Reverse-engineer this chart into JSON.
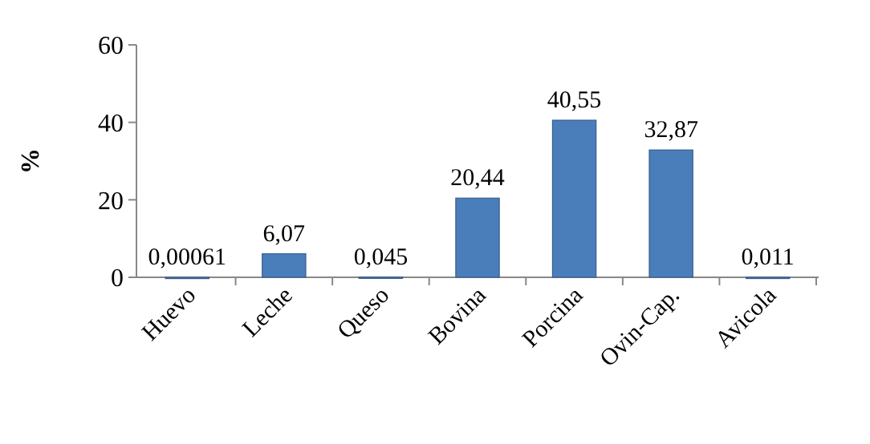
{
  "chart_data": {
    "type": "bar",
    "ylabel": "%",
    "categories": [
      "Huevo",
      "Leche",
      "Queso",
      "Bovina",
      "Porcina",
      "Ovin-Cap.",
      "Avicola"
    ],
    "values": [
      0.00061,
      6.07,
      0.045,
      20.44,
      40.55,
      32.87,
      0.011
    ],
    "value_labels": [
      "0,00061",
      "6,07",
      "0,045",
      "20,44",
      "40,55",
      "32,87",
      "0,011"
    ],
    "color": "#4a7ebb",
    "ylim": [
      0,
      60
    ],
    "yticks": [
      0,
      20,
      40,
      60
    ],
    "grid": false
  }
}
